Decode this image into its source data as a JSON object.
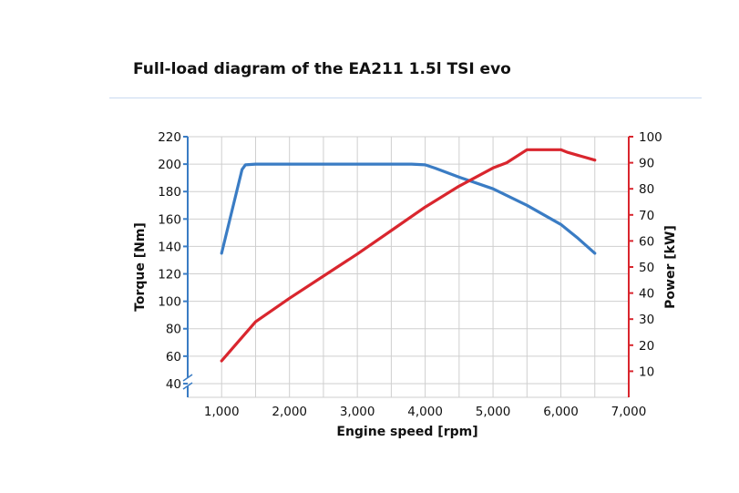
{
  "title": "Full-load diagram of the EA211 1.5l TSI evo",
  "chart_data": {
    "type": "line",
    "title": "Full-load diagram of the EA211 1.5l TSI evo",
    "xlabel": "Engine speed [rpm]",
    "ylabel_left": "Torque [Nm]",
    "ylabel_right": "Power [kW]",
    "xlim": [
      500,
      7000
    ],
    "ylim_left": [
      30,
      220
    ],
    "ylim_right": [
      0,
      100
    ],
    "x_ticks": [
      1000,
      2000,
      3000,
      4000,
      5000,
      6000,
      7000
    ],
    "x_tick_labels": [
      "1,000",
      "2,000",
      "3,000",
      "4,000",
      "5,000",
      "6,000",
      "7,000"
    ],
    "y_left_ticks": [
      40,
      60,
      80,
      100,
      120,
      140,
      160,
      180,
      200,
      220
    ],
    "y_left_tick_labels": [
      "40",
      "60",
      "80",
      "100",
      "120",
      "140",
      "160",
      "180",
      "200",
      "220"
    ],
    "y_right_ticks": [
      10,
      20,
      30,
      40,
      50,
      60,
      70,
      80,
      90,
      100
    ],
    "y_right_tick_labels": [
      "10",
      "20",
      "30",
      "40",
      "50",
      "60",
      "70",
      "80",
      "90",
      "100"
    ],
    "grid": true,
    "axis_break_left": true,
    "colors": {
      "torque": "#3a7cc4",
      "power": "#d9262e",
      "grid": "#cfcfcf"
    },
    "series": [
      {
        "axis": "left",
        "color": "#3a7cc4",
        "points": [
          [
            1000,
            135
          ],
          [
            1300,
            196
          ],
          [
            1350,
            199.5
          ],
          [
            1500,
            200
          ],
          [
            2000,
            200
          ],
          [
            3000,
            200
          ],
          [
            3800,
            200
          ],
          [
            4000,
            199.5
          ],
          [
            4150,
            197
          ],
          [
            4500,
            190.5
          ],
          [
            5000,
            182
          ],
          [
            5500,
            170
          ],
          [
            6000,
            156
          ],
          [
            6250,
            146
          ],
          [
            6500,
            135
          ]
        ]
      },
      {
        "axis": "right",
        "color": "#d9262e",
        "points": [
          [
            1000,
            14
          ],
          [
            1200,
            20
          ],
          [
            1500,
            29
          ],
          [
            2000,
            38
          ],
          [
            2500,
            46.5
          ],
          [
            3000,
            55
          ],
          [
            3500,
            64
          ],
          [
            4000,
            73
          ],
          [
            4500,
            81
          ],
          [
            5000,
            88
          ],
          [
            5200,
            90
          ],
          [
            5500,
            95
          ],
          [
            6000,
            95
          ],
          [
            6100,
            94
          ],
          [
            6500,
            91
          ]
        ]
      }
    ]
  }
}
